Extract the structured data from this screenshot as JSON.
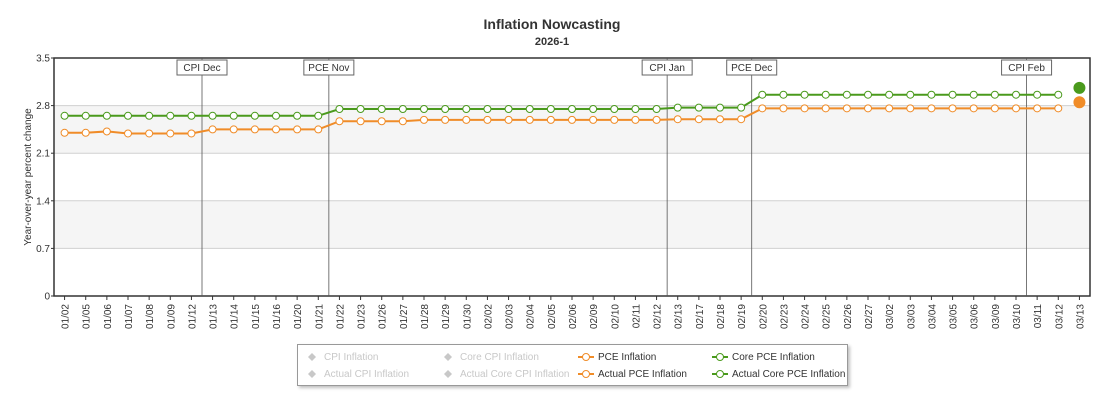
{
  "chart_data": {
    "type": "line",
    "title": "Inflation Nowcasting",
    "subtitle": "2026-1",
    "ylabel": "Year-over-year percent change",
    "ylim": [
      0,
      3.5
    ],
    "yticks": [
      "0",
      "0.7",
      "1.4",
      "2.1",
      "2.8",
      "3.5"
    ],
    "categories": [
      "01/02",
      "01/05",
      "01/06",
      "01/07",
      "01/08",
      "01/09",
      "01/12",
      "01/13",
      "01/14",
      "01/15",
      "01/16",
      "01/20",
      "01/21",
      "01/22",
      "01/23",
      "01/26",
      "01/27",
      "01/28",
      "01/29",
      "01/30",
      "02/02",
      "02/03",
      "02/04",
      "02/05",
      "02/06",
      "02/09",
      "02/10",
      "02/11",
      "02/12",
      "02/13",
      "02/17",
      "02/18",
      "02/19",
      "02/20",
      "02/23",
      "02/24",
      "02/25",
      "02/26",
      "02/27",
      "03/02",
      "03/03",
      "03/04",
      "03/05",
      "03/06",
      "03/09",
      "03/10",
      "03/11",
      "03/12",
      "03/13"
    ],
    "events": [
      {
        "label": "CPI Dec",
        "at": "01/13"
      },
      {
        "label": "PCE Nov",
        "at": "01/22"
      },
      {
        "label": "CPI Jan",
        "at": "02/13"
      },
      {
        "label": "PCE Dec",
        "at": "02/20"
      },
      {
        "label": "CPI Feb",
        "at": "03/11"
      }
    ],
    "series": [
      {
        "name": "Core PCE Inflation",
        "color": "#4a9a1c",
        "values": [
          2.65,
          2.65,
          2.65,
          2.65,
          2.65,
          2.65,
          2.65,
          2.65,
          2.65,
          2.65,
          2.65,
          2.65,
          2.65,
          2.75,
          2.75,
          2.75,
          2.75,
          2.75,
          2.75,
          2.75,
          2.75,
          2.75,
          2.75,
          2.75,
          2.75,
          2.75,
          2.75,
          2.75,
          2.75,
          2.77,
          2.77,
          2.77,
          2.77,
          2.96,
          2.96,
          2.96,
          2.96,
          2.96,
          2.96,
          2.96,
          2.96,
          2.96,
          2.96,
          2.96,
          2.96,
          2.96,
          2.96,
          2.96,
          null
        ]
      },
      {
        "name": "PCE Inflation",
        "color": "#f08c28",
        "values": [
          2.4,
          2.4,
          2.42,
          2.39,
          2.39,
          2.39,
          2.39,
          2.45,
          2.45,
          2.45,
          2.45,
          2.45,
          2.45,
          2.57,
          2.57,
          2.57,
          2.57,
          2.59,
          2.59,
          2.59,
          2.59,
          2.59,
          2.59,
          2.59,
          2.59,
          2.59,
          2.59,
          2.59,
          2.59,
          2.6,
          2.6,
          2.6,
          2.6,
          2.76,
          2.76,
          2.76,
          2.76,
          2.76,
          2.76,
          2.76,
          2.76,
          2.76,
          2.76,
          2.76,
          2.76,
          2.76,
          2.76,
          2.76,
          null
        ]
      },
      {
        "name": "Actual Core PCE Inflation",
        "color": "#4a9a1c",
        "values": [
          null,
          null,
          null,
          null,
          null,
          null,
          null,
          null,
          null,
          null,
          null,
          null,
          null,
          null,
          null,
          null,
          null,
          null,
          null,
          null,
          null,
          null,
          null,
          null,
          null,
          null,
          null,
          null,
          null,
          null,
          null,
          null,
          null,
          null,
          null,
          null,
          null,
          null,
          null,
          null,
          null,
          null,
          null,
          null,
          null,
          null,
          null,
          null,
          3.06
        ]
      },
      {
        "name": "Actual PCE Inflation",
        "color": "#f08c28",
        "values": [
          null,
          null,
          null,
          null,
          null,
          null,
          null,
          null,
          null,
          null,
          null,
          null,
          null,
          null,
          null,
          null,
          null,
          null,
          null,
          null,
          null,
          null,
          null,
          null,
          null,
          null,
          null,
          null,
          null,
          null,
          null,
          null,
          null,
          null,
          null,
          null,
          null,
          null,
          null,
          null,
          null,
          null,
          null,
          null,
          null,
          null,
          null,
          null,
          2.85
        ]
      }
    ],
    "grid": true,
    "legend_position": "bottom-center",
    "legend": [
      {
        "label": "CPI Inflation",
        "active": false,
        "kind": "diamond",
        "color": "#c8c8c8"
      },
      {
        "label": "Core CPI Inflation",
        "active": false,
        "kind": "diamond",
        "color": "#c8c8c8"
      },
      {
        "label": "PCE Inflation",
        "active": true,
        "kind": "line",
        "color": "#f08c28"
      },
      {
        "label": "Core PCE Inflation",
        "active": true,
        "kind": "line",
        "color": "#4a9a1c"
      },
      {
        "label": "Actual CPI Inflation",
        "active": false,
        "kind": "diamond",
        "color": "#c8c8c8"
      },
      {
        "label": "Actual Core CPI Inflation",
        "active": false,
        "kind": "diamond",
        "color": "#c8c8c8"
      },
      {
        "label": "Actual PCE Inflation",
        "active": true,
        "kind": "line",
        "color": "#f08c28"
      },
      {
        "label": "Actual Core PCE Inflation",
        "active": true,
        "kind": "line",
        "color": "#4a9a1c"
      }
    ]
  }
}
